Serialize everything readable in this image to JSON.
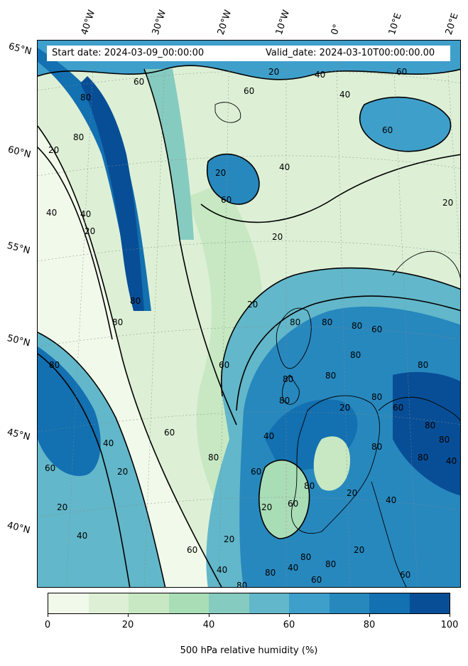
{
  "header": {
    "start_date": "Start date: 2024-03-09_00:00:00",
    "valid_date": "Valid_date: 2024-03-10T00:00:00.00"
  },
  "map": {
    "latitude_labels": [
      "65°N",
      "60°N",
      "55°N",
      "50°N",
      "45°N",
      "40°N"
    ],
    "longitude_labels": [
      "40°W",
      "30°W",
      "20°W",
      "10°W",
      "0°",
      "10°E",
      "20°E"
    ],
    "contour_labels": [
      "20",
      "40",
      "60",
      "80"
    ]
  },
  "colorbar": {
    "label": "500 hPa relative humidity (%)",
    "tick_labels": [
      "0",
      "20",
      "40",
      "60",
      "80",
      "100"
    ],
    "levels": [
      0,
      10,
      20,
      30,
      40,
      50,
      60,
      70,
      80,
      90,
      100
    ],
    "colors": [
      "#f1f9ea",
      "#ddf0d6",
      "#c7e8c2",
      "#a9ddb6",
      "#86cbc0",
      "#62b7ca",
      "#3f9fcb",
      "#2788be",
      "#1370b1",
      "#084e97"
    ]
  },
  "colors": {
    "land_outline": "#000000",
    "contour": "#000000"
  }
}
